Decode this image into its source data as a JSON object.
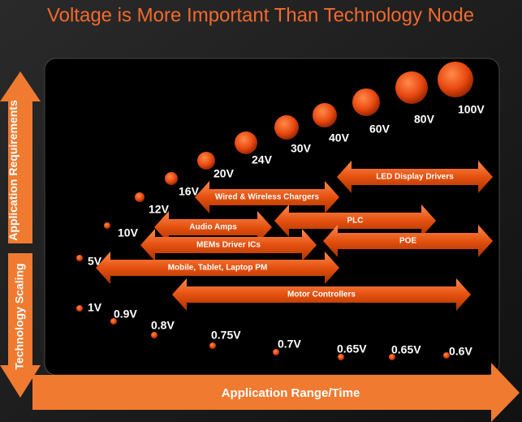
{
  "title": "Voltage is More Important Than Technology Node",
  "axes": {
    "up": "Application Requirements",
    "down": "Technology Scaling",
    "right": "Application Range/Time"
  },
  "high_voltages": [
    "5V",
    "10V",
    "12V",
    "16V",
    "20V",
    "24V",
    "30V",
    "40V",
    "60V",
    "80V",
    "100V"
  ],
  "low_voltages": [
    "1V",
    "0.9V",
    "0.8V",
    "0.75V",
    "0.7V",
    "0.65V",
    "0.65V",
    "0.6V"
  ],
  "applications": [
    "LED Display Drivers",
    "Wired & Wireless Chargers",
    "Audio Amps",
    "PLC",
    "MEMs Driver ICs",
    "POE",
    "Mobile, Tablet, Laptop PM",
    "Motor Controllers"
  ]
}
